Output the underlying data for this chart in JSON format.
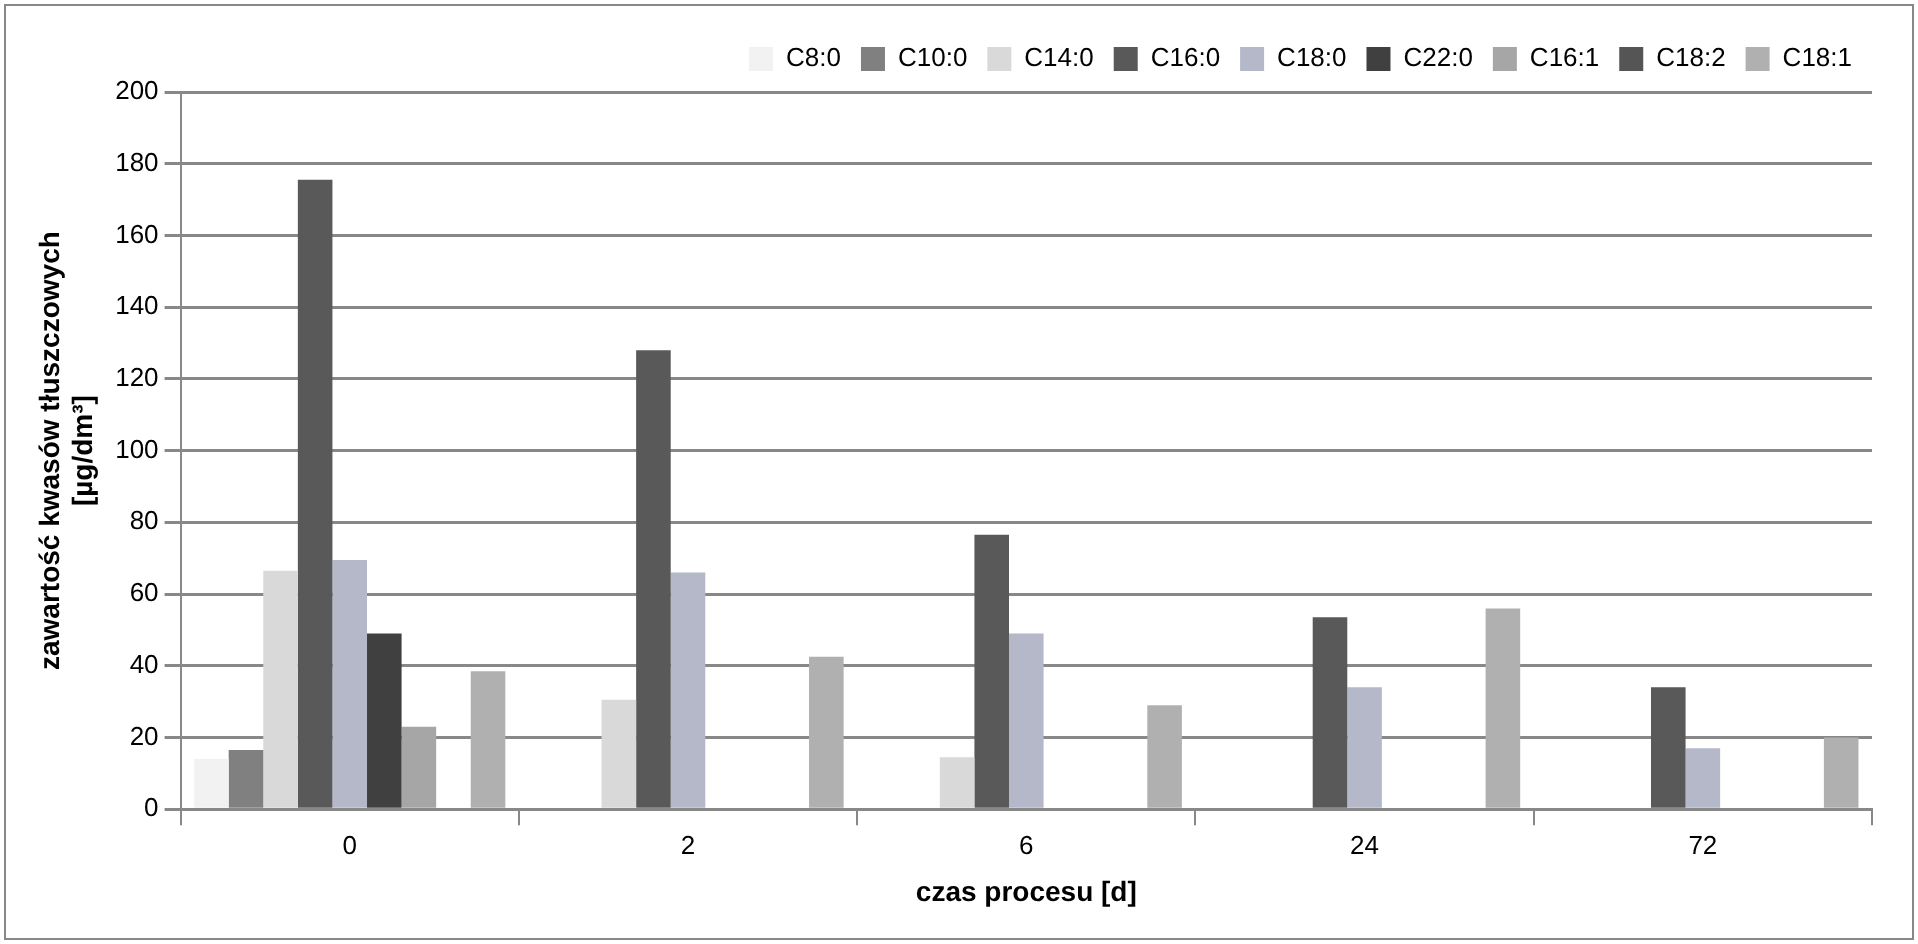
{
  "chart_data": {
    "type": "bar",
    "xlabel": "czas procesu [d]",
    "ylabel": "zawartość kwasów tłuszczowych\n[µg/dm³]",
    "categories": [
      "0",
      "2",
      "6",
      "24",
      "72"
    ],
    "series": [
      {
        "name": "C8:0",
        "color": "#f2f2f2",
        "values": [
          14,
          0,
          0,
          0,
          0
        ]
      },
      {
        "name": "C10:0",
        "color": "#808080",
        "values": [
          16.5,
          0,
          0,
          0,
          0
        ]
      },
      {
        "name": "C14:0",
        "color": "#d9d9d9",
        "values": [
          66.5,
          30.5,
          14.5,
          0,
          0
        ]
      },
      {
        "name": "C16:0",
        "color": "#595959",
        "values": [
          175.5,
          128,
          76.5,
          53.5,
          34
        ]
      },
      {
        "name": "C18:0",
        "color": "#b4b8c8",
        "values": [
          69.5,
          66,
          49,
          34,
          17
        ]
      },
      {
        "name": "C22:0",
        "color": "#404040",
        "values": [
          49,
          0,
          0,
          0,
          0
        ]
      },
      {
        "name": "C16:1",
        "color": "#a6a6a6",
        "values": [
          23,
          0,
          0,
          0,
          0
        ]
      },
      {
        "name": "C18:2",
        "color": "#555555",
        "values": [
          0,
          0,
          0,
          0,
          0
        ]
      },
      {
        "name": "C18:1",
        "color": "#b0b0b0",
        "values": [
          38.5,
          42.5,
          29,
          56,
          20
        ]
      }
    ],
    "ylim": [
      0,
      200
    ],
    "yticks": [
      0,
      20,
      40,
      60,
      80,
      100,
      120,
      140,
      160,
      180,
      200
    ],
    "grid": "y",
    "legend": "top right"
  }
}
